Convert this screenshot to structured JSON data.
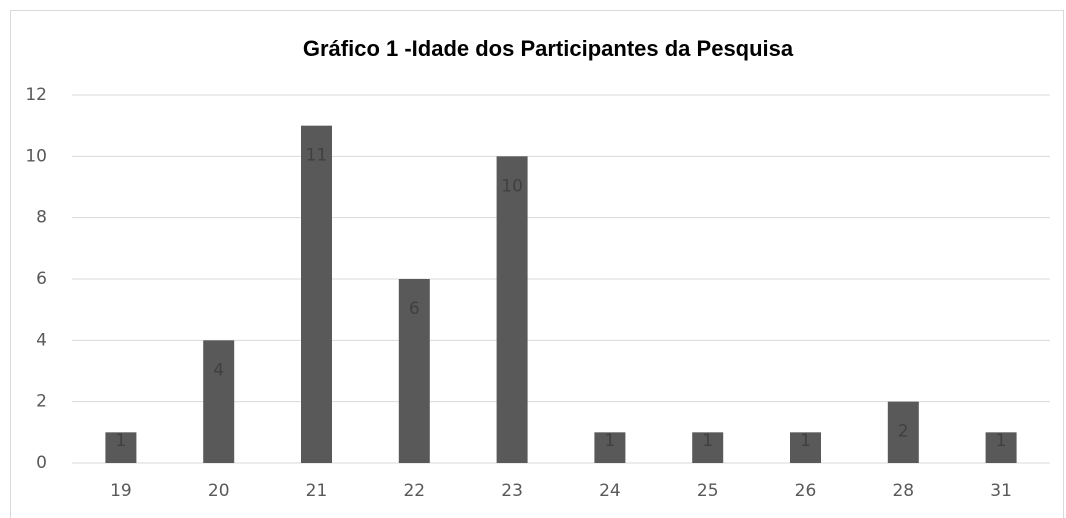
{
  "chart_data": {
    "type": "bar",
    "title": "Gráfico 1 -Idade dos Participantes da Pesquisa",
    "categories": [
      "19",
      "20",
      "21",
      "22",
      "23",
      "24",
      "25",
      "26",
      "28",
      "31"
    ],
    "values": [
      1,
      4,
      11,
      6,
      10,
      1,
      1,
      1,
      2,
      1
    ],
    "color": "#595959",
    "ylim": [
      0,
      12
    ],
    "yticks": [
      0,
      2,
      4,
      6,
      8,
      10,
      12
    ],
    "grid": true
  }
}
